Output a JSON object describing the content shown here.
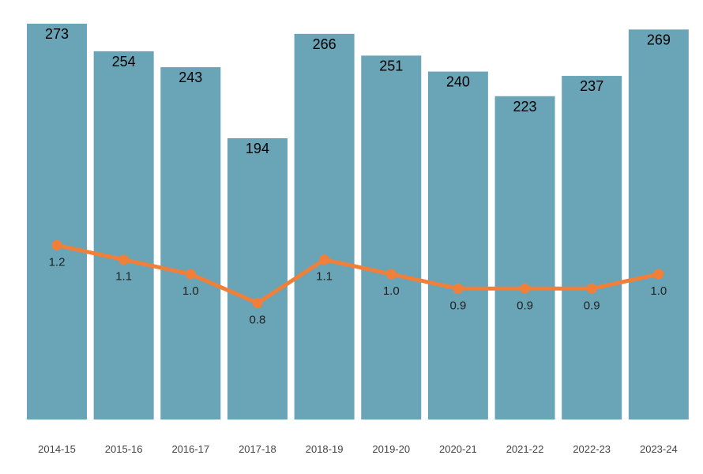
{
  "chart_data": {
    "type": "bar",
    "categories": [
      "2014-15",
      "2015-16",
      "2016-17",
      "2017-18",
      "2018-19",
      "2019-20",
      "2020-21",
      "2021-22",
      "2022-23",
      "2023-24"
    ],
    "series": [
      {
        "type": "bar",
        "values": [
          273,
          254,
          243,
          194,
          266,
          251,
          240,
          223,
          237,
          269
        ],
        "labels": [
          "273",
          "254",
          "243",
          "194",
          "266",
          "251",
          "240",
          "223",
          "237",
          "269"
        ],
        "color": "#6aa5b7"
      },
      {
        "type": "line",
        "values": [
          1.2,
          1.1,
          1.0,
          0.8,
          1.1,
          1.0,
          0.9,
          0.9,
          0.9,
          1.0
        ],
        "labels": [
          "1.2",
          "1.1",
          "1.0",
          "0.8",
          "1.1",
          "1.0",
          "0.9",
          "0.9",
          "0.9",
          "1.0"
        ],
        "color": "#f07f39"
      }
    ],
    "title": "",
    "xlabel": "",
    "ylabel": "",
    "ylim": [
      0,
      273
    ],
    "grid": false,
    "legend": "none"
  }
}
